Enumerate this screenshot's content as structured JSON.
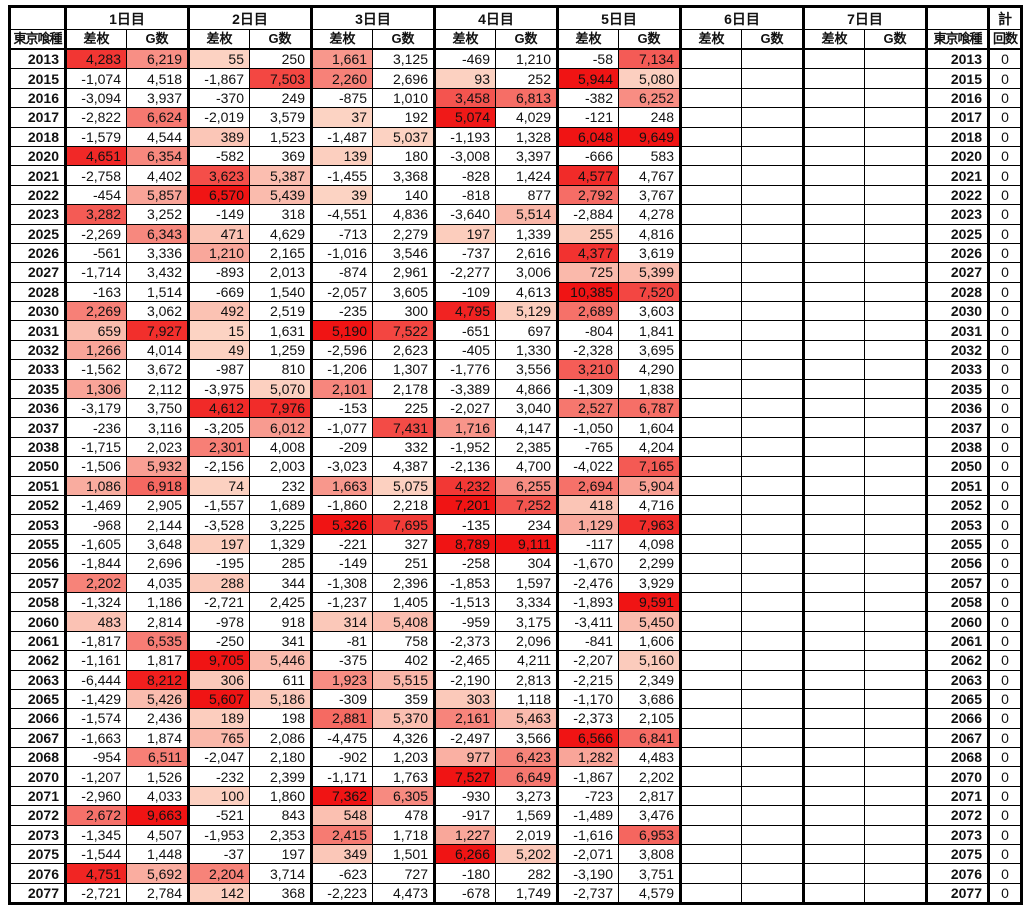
{
  "header": {
    "days": [
      "1日目",
      "2日目",
      "3日目",
      "4日目",
      "5日目",
      "6日目",
      "7日目"
    ],
    "sub_diff": "差枚",
    "sub_games": "G数",
    "row_label": "東京喰種",
    "total": "計",
    "count": "回数"
  },
  "colors": {
    "heat_low": "#fcd4c4",
    "heat_high": "#f01414"
  },
  "rows": [
    {
      "no": "2013",
      "v": [
        "4,283",
        "6,219",
        "55",
        "250",
        "1,661",
        "3,125",
        "-469",
        "1,210",
        "-58",
        "7,134"
      ],
      "count": "0"
    },
    {
      "no": "2015",
      "v": [
        "-1,074",
        "4,518",
        "-1,867",
        "7,503",
        "2,260",
        "2,696",
        "93",
        "252",
        "5,944",
        "5,080"
      ],
      "count": "0"
    },
    {
      "no": "2016",
      "v": [
        "-3,094",
        "3,937",
        "-370",
        "249",
        "-875",
        "1,010",
        "3,458",
        "6,813",
        "-382",
        "6,252"
      ],
      "count": "0"
    },
    {
      "no": "2017",
      "v": [
        "-2,822",
        "6,624",
        "-2,019",
        "3,579",
        "37",
        "192",
        "5,074",
        "4,029",
        "-121",
        "248"
      ],
      "count": "0"
    },
    {
      "no": "2018",
      "v": [
        "-1,579",
        "4,544",
        "389",
        "1,523",
        "-1,487",
        "5,037",
        "-1,193",
        "1,328",
        "6,048",
        "9,649"
      ],
      "count": "0"
    },
    {
      "no": "2020",
      "v": [
        "4,651",
        "6,354",
        "-582",
        "369",
        "139",
        "180",
        "-3,008",
        "3,397",
        "-666",
        "583"
      ],
      "count": "0"
    },
    {
      "no": "2021",
      "v": [
        "-2,758",
        "4,402",
        "3,623",
        "5,387",
        "-1,455",
        "3,368",
        "-828",
        "1,424",
        "4,577",
        "4,767"
      ],
      "count": "0"
    },
    {
      "no": "2022",
      "v": [
        "-454",
        "5,857",
        "6,570",
        "5,439",
        "39",
        "140",
        "-818",
        "877",
        "2,792",
        "3,767"
      ],
      "count": "0"
    },
    {
      "no": "2023",
      "v": [
        "3,282",
        "3,252",
        "-149",
        "318",
        "-4,551",
        "4,836",
        "-3,640",
        "5,514",
        "-2,884",
        "4,278"
      ],
      "count": "0"
    },
    {
      "no": "2025",
      "v": [
        "-2,269",
        "6,343",
        "471",
        "4,629",
        "-713",
        "2,279",
        "197",
        "1,339",
        "255",
        "4,816"
      ],
      "count": "0"
    },
    {
      "no": "2026",
      "v": [
        "-561",
        "3,336",
        "1,210",
        "2,165",
        "-1,016",
        "3,546",
        "-737",
        "2,616",
        "4,377",
        "3,619"
      ],
      "count": "0"
    },
    {
      "no": "2027",
      "v": [
        "-1,714",
        "3,432",
        "-893",
        "2,013",
        "-874",
        "2,961",
        "-2,277",
        "3,006",
        "725",
        "5,399"
      ],
      "count": "0"
    },
    {
      "no": "2028",
      "v": [
        "-163",
        "1,514",
        "-669",
        "1,540",
        "-2,057",
        "3,605",
        "-109",
        "4,613",
        "10,385",
        "7,520"
      ],
      "count": "0"
    },
    {
      "no": "2030",
      "v": [
        "2,269",
        "3,062",
        "492",
        "2,519",
        "-235",
        "300",
        "4,795",
        "5,129",
        "2,689",
        "3,603"
      ],
      "count": "0"
    },
    {
      "no": "2031",
      "v": [
        "659",
        "7,927",
        "15",
        "1,631",
        "5,190",
        "7,522",
        "-651",
        "697",
        "-804",
        "1,841"
      ],
      "count": "0"
    },
    {
      "no": "2032",
      "v": [
        "1,266",
        "4,014",
        "49",
        "1,259",
        "-2,596",
        "2,623",
        "-405",
        "1,330",
        "-2,328",
        "3,695"
      ],
      "count": "0"
    },
    {
      "no": "2033",
      "v": [
        "-1,562",
        "3,672",
        "-987",
        "810",
        "-1,206",
        "1,307",
        "-1,776",
        "3,556",
        "3,210",
        "4,290"
      ],
      "count": "0"
    },
    {
      "no": "2035",
      "v": [
        "1,306",
        "2,112",
        "-3,975",
        "5,070",
        "2,101",
        "2,178",
        "-3,389",
        "4,866",
        "-1,309",
        "1,838"
      ],
      "count": "0"
    },
    {
      "no": "2036",
      "v": [
        "-3,179",
        "3,750",
        "4,612",
        "7,976",
        "-153",
        "225",
        "-2,027",
        "3,040",
        "2,527",
        "6,787"
      ],
      "count": "0"
    },
    {
      "no": "2037",
      "v": [
        "-236",
        "3,116",
        "-3,205",
        "6,012",
        "-1,077",
        "7,431",
        "1,716",
        "4,147",
        "-1,050",
        "1,604"
      ],
      "count": "0"
    },
    {
      "no": "2038",
      "v": [
        "-1,715",
        "2,023",
        "2,301",
        "4,008",
        "-209",
        "332",
        "-1,952",
        "2,385",
        "-765",
        "4,204"
      ],
      "count": "0"
    },
    {
      "no": "2050",
      "v": [
        "-1,506",
        "5,932",
        "-2,156",
        "2,003",
        "-3,023",
        "4,387",
        "-2,136",
        "4,700",
        "-4,022",
        "7,165"
      ],
      "count": "0"
    },
    {
      "no": "2051",
      "v": [
        "1,086",
        "6,918",
        "74",
        "232",
        "1,663",
        "5,075",
        "4,232",
        "6,255",
        "2,694",
        "5,904"
      ],
      "count": "0"
    },
    {
      "no": "2052",
      "v": [
        "-1,469",
        "2,905",
        "-1,557",
        "1,689",
        "-1,860",
        "2,218",
        "7,201",
        "7,252",
        "418",
        "4,716"
      ],
      "count": "0"
    },
    {
      "no": "2053",
      "v": [
        "-968",
        "2,144",
        "-3,528",
        "3,225",
        "5,326",
        "7,695",
        "-135",
        "234",
        "1,129",
        "7,963"
      ],
      "count": "0"
    },
    {
      "no": "2055",
      "v": [
        "-1,605",
        "3,648",
        "197",
        "1,329",
        "-221",
        "327",
        "8,789",
        "9,111",
        "-117",
        "4,098"
      ],
      "count": "0"
    },
    {
      "no": "2056",
      "v": [
        "-1,844",
        "2,696",
        "-195",
        "285",
        "-149",
        "251",
        "-258",
        "304",
        "-1,670",
        "2,299"
      ],
      "count": "0"
    },
    {
      "no": "2057",
      "v": [
        "2,202",
        "4,035",
        "288",
        "344",
        "-1,308",
        "2,396",
        "-1,853",
        "1,597",
        "-2,476",
        "3,929"
      ],
      "count": "0"
    },
    {
      "no": "2058",
      "v": [
        "-1,324",
        "1,186",
        "-2,721",
        "2,425",
        "-1,237",
        "1,405",
        "-1,513",
        "3,334",
        "-1,893",
        "9,591"
      ],
      "count": "0"
    },
    {
      "no": "2060",
      "v": [
        "483",
        "2,814",
        "-978",
        "918",
        "314",
        "5,408",
        "-959",
        "3,175",
        "-3,411",
        "5,450"
      ],
      "count": "0"
    },
    {
      "no": "2061",
      "v": [
        "-1,817",
        "6,535",
        "-250",
        "341",
        "-81",
        "758",
        "-2,373",
        "2,096",
        "-841",
        "1,606"
      ],
      "count": "0"
    },
    {
      "no": "2062",
      "v": [
        "-1,161",
        "1,817",
        "9,705",
        "5,446",
        "-375",
        "402",
        "-2,465",
        "4,211",
        "-2,207",
        "5,160"
      ],
      "count": "0"
    },
    {
      "no": "2063",
      "v": [
        "-6,444",
        "8,212",
        "306",
        "611",
        "1,923",
        "5,515",
        "-2,190",
        "2,813",
        "-2,215",
        "2,349"
      ],
      "count": "0"
    },
    {
      "no": "2065",
      "v": [
        "-1,429",
        "5,426",
        "5,607",
        "5,186",
        "-309",
        "359",
        "303",
        "1,118",
        "-1,170",
        "3,686"
      ],
      "count": "0"
    },
    {
      "no": "2066",
      "v": [
        "-1,574",
        "2,436",
        "189",
        "198",
        "2,881",
        "5,370",
        "2,161",
        "5,463",
        "-2,373",
        "2,105"
      ],
      "count": "0"
    },
    {
      "no": "2067",
      "v": [
        "-1,663",
        "1,874",
        "765",
        "2,086",
        "-4,475",
        "4,326",
        "-2,497",
        "3,566",
        "6,566",
        "6,841"
      ],
      "count": "0"
    },
    {
      "no": "2068",
      "v": [
        "-954",
        "6,511",
        "-2,047",
        "2,180",
        "-902",
        "1,203",
        "977",
        "6,423",
        "1,282",
        "4,483"
      ],
      "count": "0"
    },
    {
      "no": "2070",
      "v": [
        "-1,207",
        "1,526",
        "-232",
        "2,399",
        "-1,171",
        "1,763",
        "7,527",
        "6,649",
        "-1,867",
        "2,202"
      ],
      "count": "0"
    },
    {
      "no": "2071",
      "v": [
        "-2,960",
        "4,033",
        "100",
        "1,860",
        "7,362",
        "6,305",
        "-930",
        "3,273",
        "-723",
        "2,817"
      ],
      "count": "0"
    },
    {
      "no": "2072",
      "v": [
        "2,672",
        "9,663",
        "-521",
        "843",
        "548",
        "478",
        "-917",
        "1,569",
        "-1,489",
        "3,476"
      ],
      "count": "0"
    },
    {
      "no": "2073",
      "v": [
        "-1,345",
        "4,507",
        "-1,953",
        "2,353",
        "2,415",
        "1,718",
        "1,227",
        "2,019",
        "-1,616",
        "6,953"
      ],
      "count": "0"
    },
    {
      "no": "2075",
      "v": [
        "-1,544",
        "1,448",
        "-37",
        "197",
        "349",
        "1,501",
        "6,266",
        "5,202",
        "-2,071",
        "3,808"
      ],
      "count": "0"
    },
    {
      "no": "2076",
      "v": [
        "4,751",
        "5,692",
        "2,204",
        "3,714",
        "-623",
        "727",
        "-180",
        "282",
        "-3,190",
        "3,751"
      ],
      "count": "0"
    },
    {
      "no": "2077",
      "v": [
        "-2,721",
        "2,784",
        "142",
        "368",
        "-2,223",
        "4,473",
        "-678",
        "1,749",
        "-2,737",
        "4,579"
      ],
      "count": "0"
    }
  ]
}
